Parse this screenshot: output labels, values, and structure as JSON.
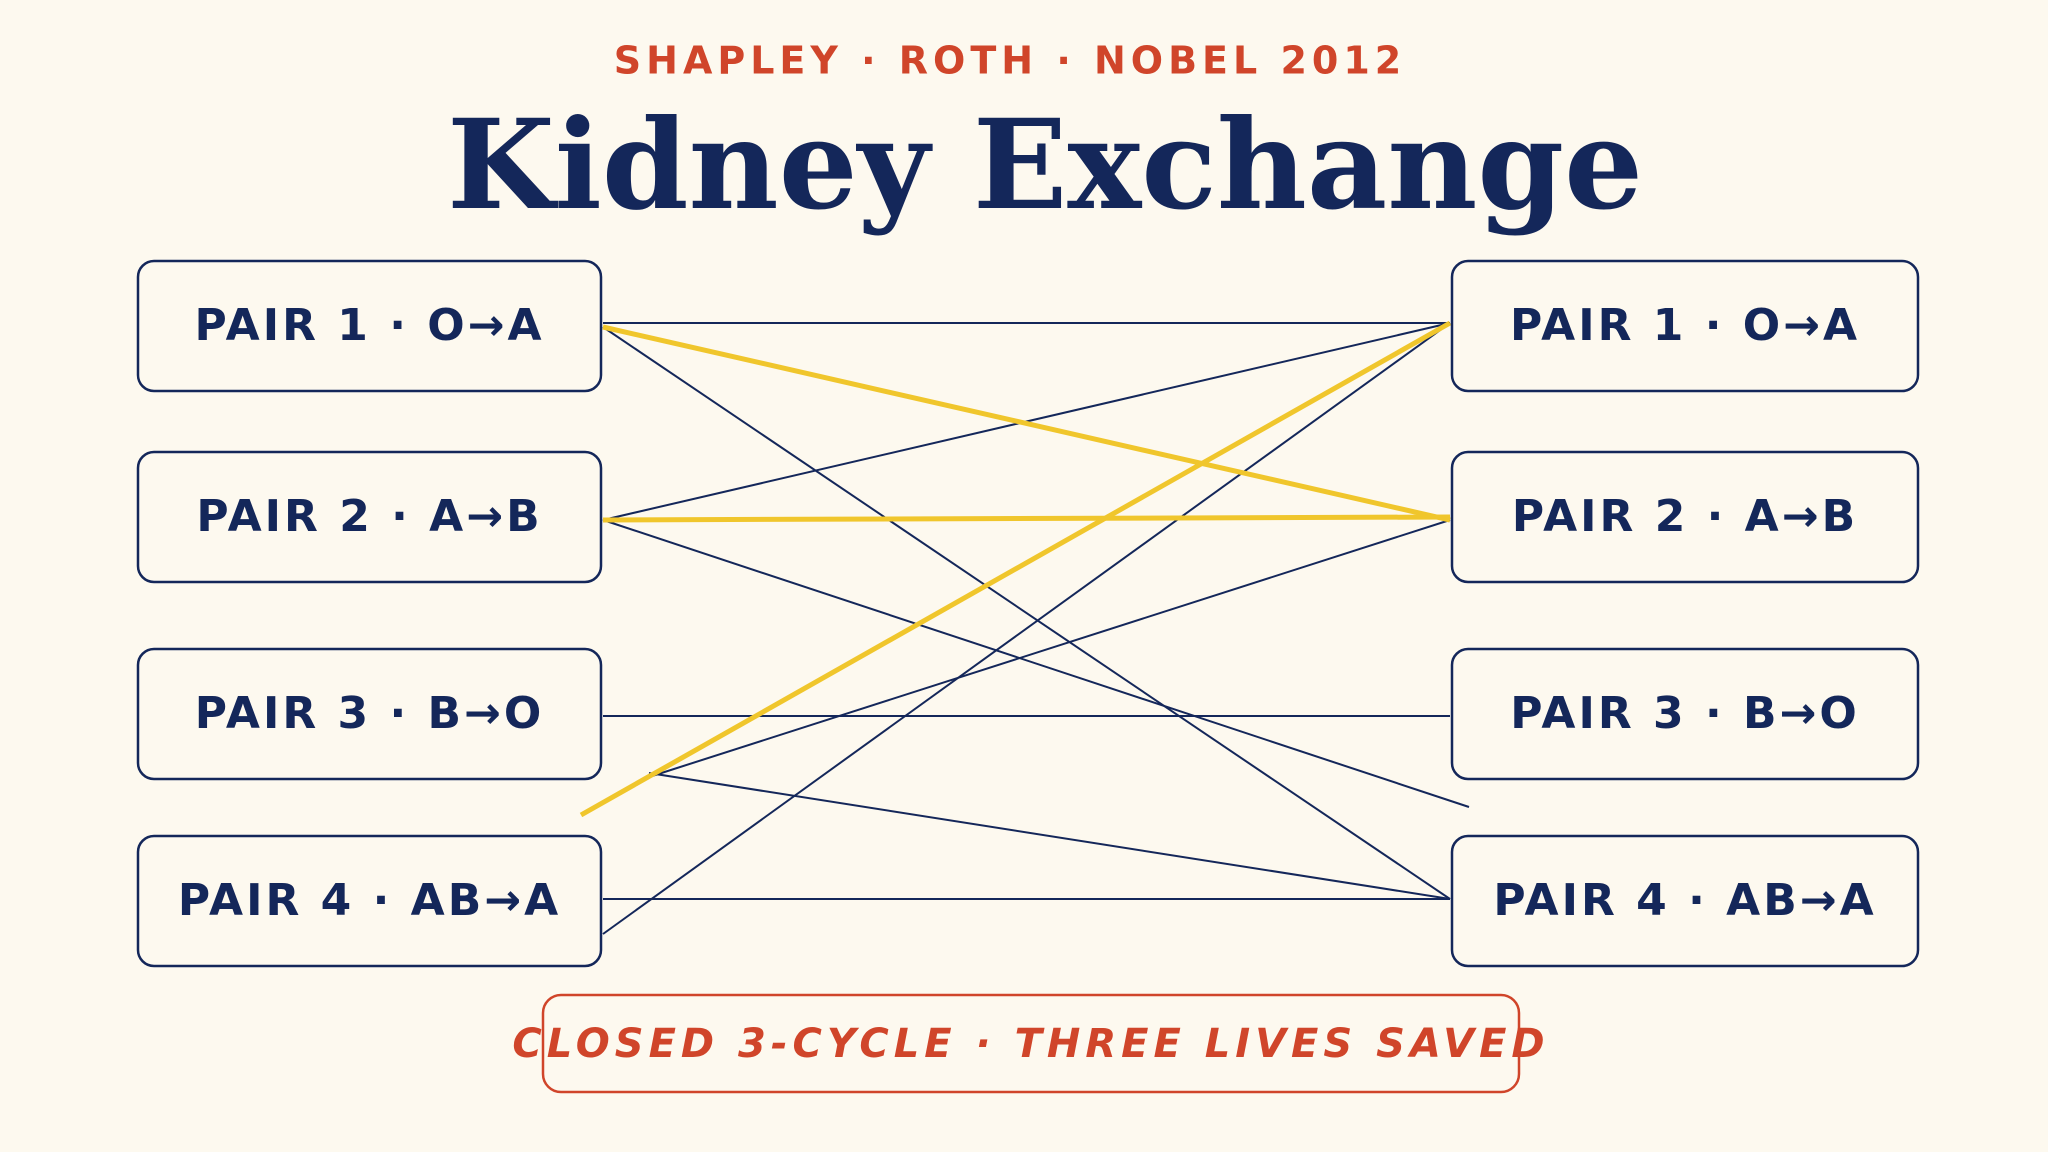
{
  "header": {
    "kicker": "SHAPLEY · ROTH · NOBEL 2012",
    "title": "Kidney Exchange"
  },
  "left_nodes": [
    {
      "label": "PAIR 1 · O→A"
    },
    {
      "label": "PAIR 2 · A→B"
    },
    {
      "label": "PAIR 3 · B→O"
    },
    {
      "label": "PAIR 4 · AB→A"
    }
  ],
  "right_nodes": [
    {
      "label": "PAIR 1 · O→A"
    },
    {
      "label": "PAIR 2 · A→B"
    },
    {
      "label": "PAIR 3 · B→O"
    },
    {
      "label": "PAIR 4 · AB→A"
    }
  ],
  "footer": "CLOSED 3-CYCLE · THREE LIVES SAVED"
}
